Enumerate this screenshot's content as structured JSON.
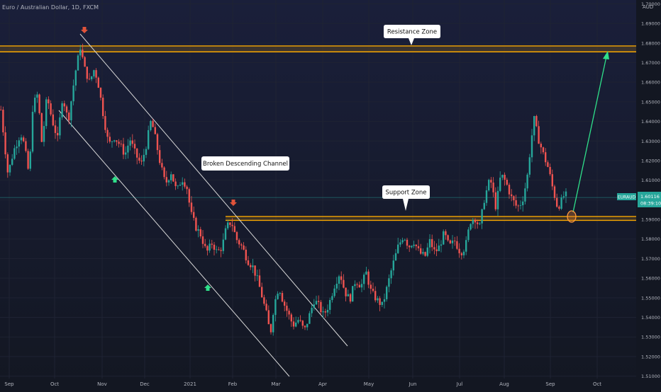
{
  "chart_data": {
    "type": "candlestick",
    "title": "Euro / Australian Dollar, 1D, FXCM",
    "symbol": "EURAUD",
    "currency": "AUD",
    "last_price": "1.60116",
    "countdown": "08:39:10",
    "y_ticks": [
      "1.70000",
      "1.69000",
      "1.68000",
      "1.67000",
      "1.66000",
      "1.65000",
      "1.64000",
      "1.63000",
      "1.62000",
      "1.61000",
      "1.60000",
      "1.59000",
      "1.58000",
      "1.57000",
      "1.56000",
      "1.55000",
      "1.54000",
      "1.53000",
      "1.52000",
      "1.51000"
    ],
    "ylim": [
      1.5095,
      1.7005
    ],
    "x_ticks": [
      "Sep",
      "Oct",
      "Nov",
      "Dec",
      "2021",
      "Feb",
      "Mar",
      "Apr",
      "May",
      "Jun",
      "Jul",
      "Aug",
      "Sep",
      "Oct"
    ],
    "grid": true,
    "anchors": [
      [
        0,
        1.646
      ],
      [
        10,
        1.613
      ],
      [
        18,
        1.625
      ],
      [
        28,
        1.634
      ],
      [
        33,
        1.628
      ],
      [
        40,
        1.612
      ],
      [
        45,
        1.648
      ],
      [
        52,
        1.654
      ],
      [
        58,
        1.628
      ],
      [
        65,
        1.653
      ],
      [
        72,
        1.641
      ],
      [
        80,
        1.631
      ],
      [
        87,
        1.653
      ],
      [
        95,
        1.64
      ],
      [
        105,
        1.665
      ],
      [
        112,
        1.678
      ],
      [
        118,
        1.667
      ],
      [
        125,
        1.66
      ],
      [
        132,
        1.667
      ],
      [
        138,
        1.658
      ],
      [
        145,
        1.642
      ],
      [
        152,
        1.628
      ],
      [
        160,
        1.632
      ],
      [
        168,
        1.628
      ],
      [
        175,
        1.623
      ],
      [
        182,
        1.631
      ],
      [
        190,
        1.623
      ],
      [
        198,
        1.618
      ],
      [
        205,
        1.628
      ],
      [
        212,
        1.641
      ],
      [
        218,
        1.631
      ],
      [
        225,
        1.618
      ],
      [
        232,
        1.608
      ],
      [
        240,
        1.614
      ],
      [
        248,
        1.604
      ],
      [
        255,
        1.611
      ],
      [
        262,
        1.607
      ],
      [
        268,
        1.593
      ],
      [
        275,
        1.586
      ],
      [
        282,
        1.582
      ],
      [
        290,
        1.573
      ],
      [
        298,
        1.578
      ],
      [
        305,
        1.573
      ],
      [
        312,
        1.576
      ],
      [
        318,
        1.586
      ],
      [
        325,
        1.589
      ],
      [
        332,
        1.58
      ],
      [
        340,
        1.576
      ],
      [
        348,
        1.569
      ],
      [
        355,
        1.566
      ],
      [
        362,
        1.559
      ],
      [
        368,
        1.551
      ],
      [
        375,
        1.541
      ],
      [
        380,
        1.531
      ],
      [
        385,
        1.546
      ],
      [
        392,
        1.556
      ],
      [
        398,
        1.548
      ],
      [
        405,
        1.542
      ],
      [
        412,
        1.536
      ],
      [
        420,
        1.539
      ],
      [
        428,
        1.533
      ],
      [
        435,
        1.541
      ],
      [
        442,
        1.549
      ],
      [
        448,
        1.546
      ],
      [
        455,
        1.541
      ],
      [
        462,
        1.546
      ],
      [
        470,
        1.556
      ],
      [
        478,
        1.563
      ],
      [
        485,
        1.553
      ],
      [
        492,
        1.549
      ],
      [
        500,
        1.559
      ],
      [
        508,
        1.556
      ],
      [
        515,
        1.563
      ],
      [
        522,
        1.553
      ],
      [
        530,
        1.549
      ],
      [
        538,
        1.546
      ],
      [
        545,
        1.556
      ],
      [
        552,
        1.566
      ],
      [
        560,
        1.576
      ],
      [
        568,
        1.582
      ],
      [
        575,
        1.576
      ],
      [
        582,
        1.579
      ],
      [
        590,
        1.573
      ],
      [
        598,
        1.571
      ],
      [
        605,
        1.579
      ],
      [
        612,
        1.573
      ],
      [
        618,
        1.576
      ],
      [
        625,
        1.583
      ],
      [
        632,
        1.576
      ],
      [
        640,
        1.579
      ],
      [
        648,
        1.573
      ],
      [
        655,
        1.576
      ],
      [
        662,
        1.589
      ],
      [
        668,
        1.591
      ],
      [
        675,
        1.586
      ],
      [
        682,
        1.601
      ],
      [
        690,
        1.611
      ],
      [
        698,
        1.596
      ],
      [
        705,
        1.613
      ],
      [
        712,
        1.609
      ],
      [
        720,
        1.601
      ],
      [
        728,
        1.596
      ],
      [
        735,
        1.599
      ],
      [
        742,
        1.611
      ],
      [
        748,
        1.631
      ],
      [
        752,
        1.641
      ],
      [
        758,
        1.631
      ],
      [
        765,
        1.623
      ],
      [
        772,
        1.616
      ],
      [
        778,
        1.606
      ],
      [
        785,
        1.596
      ],
      [
        790,
        1.599
      ],
      [
        795,
        1.603
      ],
      [
        800,
        1.601
      ]
    ],
    "price_line": 1.60116,
    "labels": {
      "resistance": "Resistance Zone",
      "support": "Support Zone",
      "channel": "Broken Descending Channel"
    },
    "colors": {
      "background": "#131722",
      "up": "#26a69a",
      "down": "#ef5350",
      "zone": "#f7a600",
      "channel": "#d9d9d9",
      "target_arrow": "#2fe08a",
      "grid": "#1f2333",
      "axis_text": "#b2b5be",
      "price_tag": "#26a69a"
    }
  }
}
